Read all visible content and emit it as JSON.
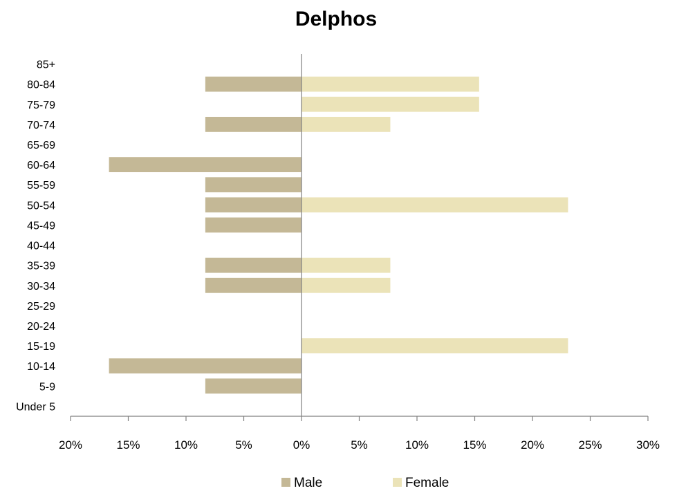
{
  "chart_data": {
    "type": "bar",
    "orientation": "horizontal",
    "title": "Delphos",
    "xlabel": "",
    "ylabel": "",
    "categories": [
      "Under 5",
      "5-9",
      "10-14",
      "15-19",
      "20-24",
      "25-29",
      "30-34",
      "35-39",
      "40-44",
      "45-49",
      "50-54",
      "55-59",
      "60-64",
      "65-69",
      "70-74",
      "75-79",
      "80-84",
      "85+"
    ],
    "series": [
      {
        "name": "Male",
        "color": "#c4b896",
        "values": [
          0,
          8.33,
          16.67,
          0,
          0,
          0,
          8.33,
          8.33,
          0,
          8.33,
          8.33,
          8.33,
          16.67,
          0,
          8.33,
          0,
          8.33,
          0
        ]
      },
      {
        "name": "Female",
        "color": "#ebe3b8",
        "values": [
          0,
          0,
          0,
          23.08,
          0,
          0,
          7.69,
          7.69,
          0,
          0,
          23.08,
          0,
          0,
          0,
          7.69,
          15.38,
          15.38,
          0
        ]
      }
    ],
    "xlim": [
      -20,
      30
    ],
    "xticks": [
      -20,
      -15,
      -10,
      -5,
      0,
      5,
      10,
      15,
      20,
      25,
      30
    ],
    "xtick_labels": [
      "20%",
      "15%",
      "10%",
      "5%",
      "0%",
      "5%",
      "10%",
      "15%",
      "20%",
      "25%",
      "30%"
    ],
    "grid": false,
    "legend_position": "bottom"
  }
}
